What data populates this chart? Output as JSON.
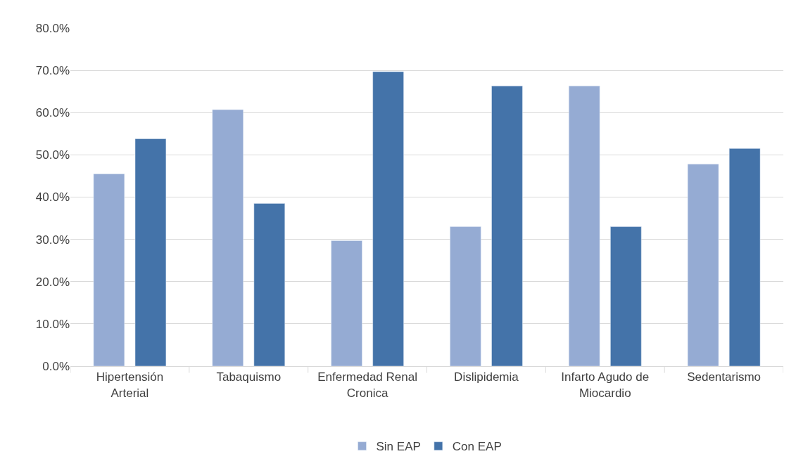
{
  "chart_data": {
    "type": "bar",
    "categories": [
      "Hipertensión Arterial",
      "Tabaquismo",
      "Enfermedad Renal Cronica",
      "Dislipidemia",
      "Infarto Agudo de Miocardio",
      "Sedentarismo"
    ],
    "series": [
      {
        "name": "Sin EAP",
        "color": "#95abd3",
        "values": [
          45.5,
          60.7,
          29.7,
          33.0,
          66.3,
          47.8
        ]
      },
      {
        "name": "Con EAP",
        "color": "#4473a9",
        "values": [
          53.8,
          38.5,
          69.7,
          66.3,
          33.0,
          51.5
        ]
      }
    ],
    "ylim": [
      0,
      80
    ],
    "yticks": [
      {
        "value": 0,
        "label": "0.0%"
      },
      {
        "value": 10,
        "label": "10.0%"
      },
      {
        "value": 20,
        "label": "20.0%"
      },
      {
        "value": 30,
        "label": "30.0%"
      },
      {
        "value": 40,
        "label": "40.0%"
      },
      {
        "value": 50,
        "label": "50.0%"
      },
      {
        "value": 60,
        "label": "60.0%"
      },
      {
        "value": 70,
        "label": "70.0%"
      },
      {
        "value": 80,
        "label": "80.0%"
      }
    ],
    "grid": "y",
    "legend": "bottom"
  }
}
